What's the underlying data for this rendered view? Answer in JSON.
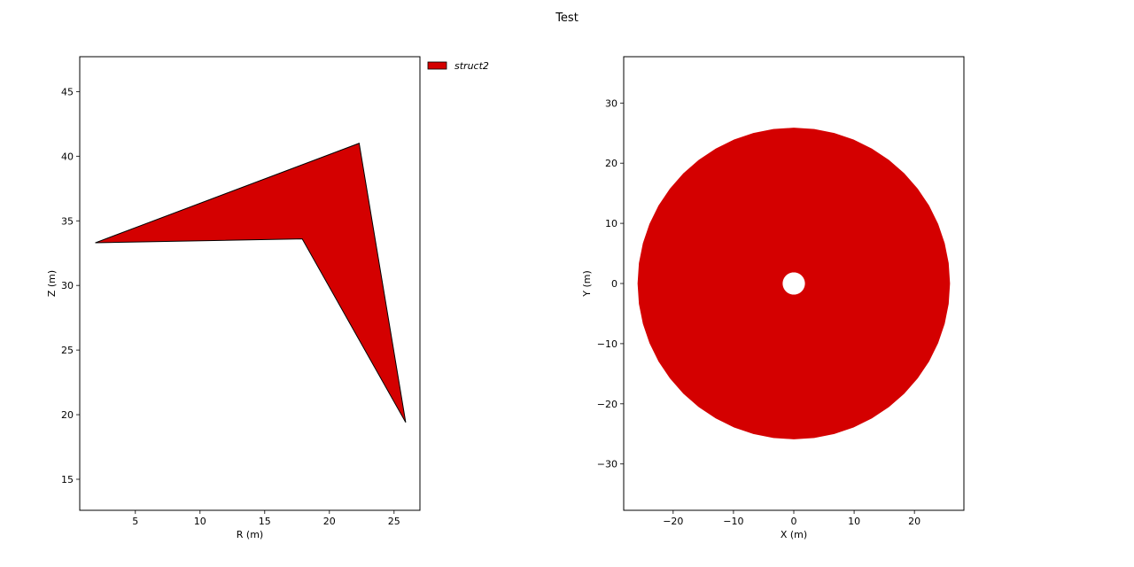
{
  "figure": {
    "title": "Test"
  },
  "chart_data": [
    {
      "type": "area",
      "panel": "left",
      "xlabel": "R (m)",
      "ylabel": "Z (m)",
      "xlim": [
        0.7,
        27.0
      ],
      "ylim": [
        12.6,
        47.7
      ],
      "xticks": [
        5,
        10,
        15,
        20,
        25
      ],
      "yticks": [
        15,
        20,
        25,
        30,
        35,
        40,
        45
      ],
      "grid": false,
      "legend": {
        "placement": "outside-top-right",
        "entries": [
          {
            "label": "struct2",
            "color": "#d40000"
          }
        ]
      },
      "series": [
        {
          "name": "struct2",
          "color": "#d40000",
          "edgecolor": "#000000",
          "polygon": [
            [
              1.9,
              33.3
            ],
            [
              22.3,
              41.0
            ],
            [
              25.9,
              19.4
            ],
            [
              17.9,
              33.6
            ]
          ]
        }
      ]
    },
    {
      "type": "area",
      "panel": "right",
      "xlabel": "X (m)",
      "ylabel": "Y (m)",
      "xlim": [
        -28.2,
        28.2
      ],
      "ylim": [
        -37.7,
        37.7
      ],
      "xticks": [
        -20,
        -10,
        0,
        10,
        20
      ],
      "yticks": [
        -30,
        -20,
        -10,
        0,
        10,
        20,
        30
      ],
      "grid": false,
      "series": [
        {
          "name": "struct2",
          "color": "#d40000",
          "annulus": {
            "center": [
              0,
              0
            ],
            "outer_radius": 25.9,
            "inner_radius": 1.85,
            "segments": 48
          }
        }
      ]
    }
  ]
}
